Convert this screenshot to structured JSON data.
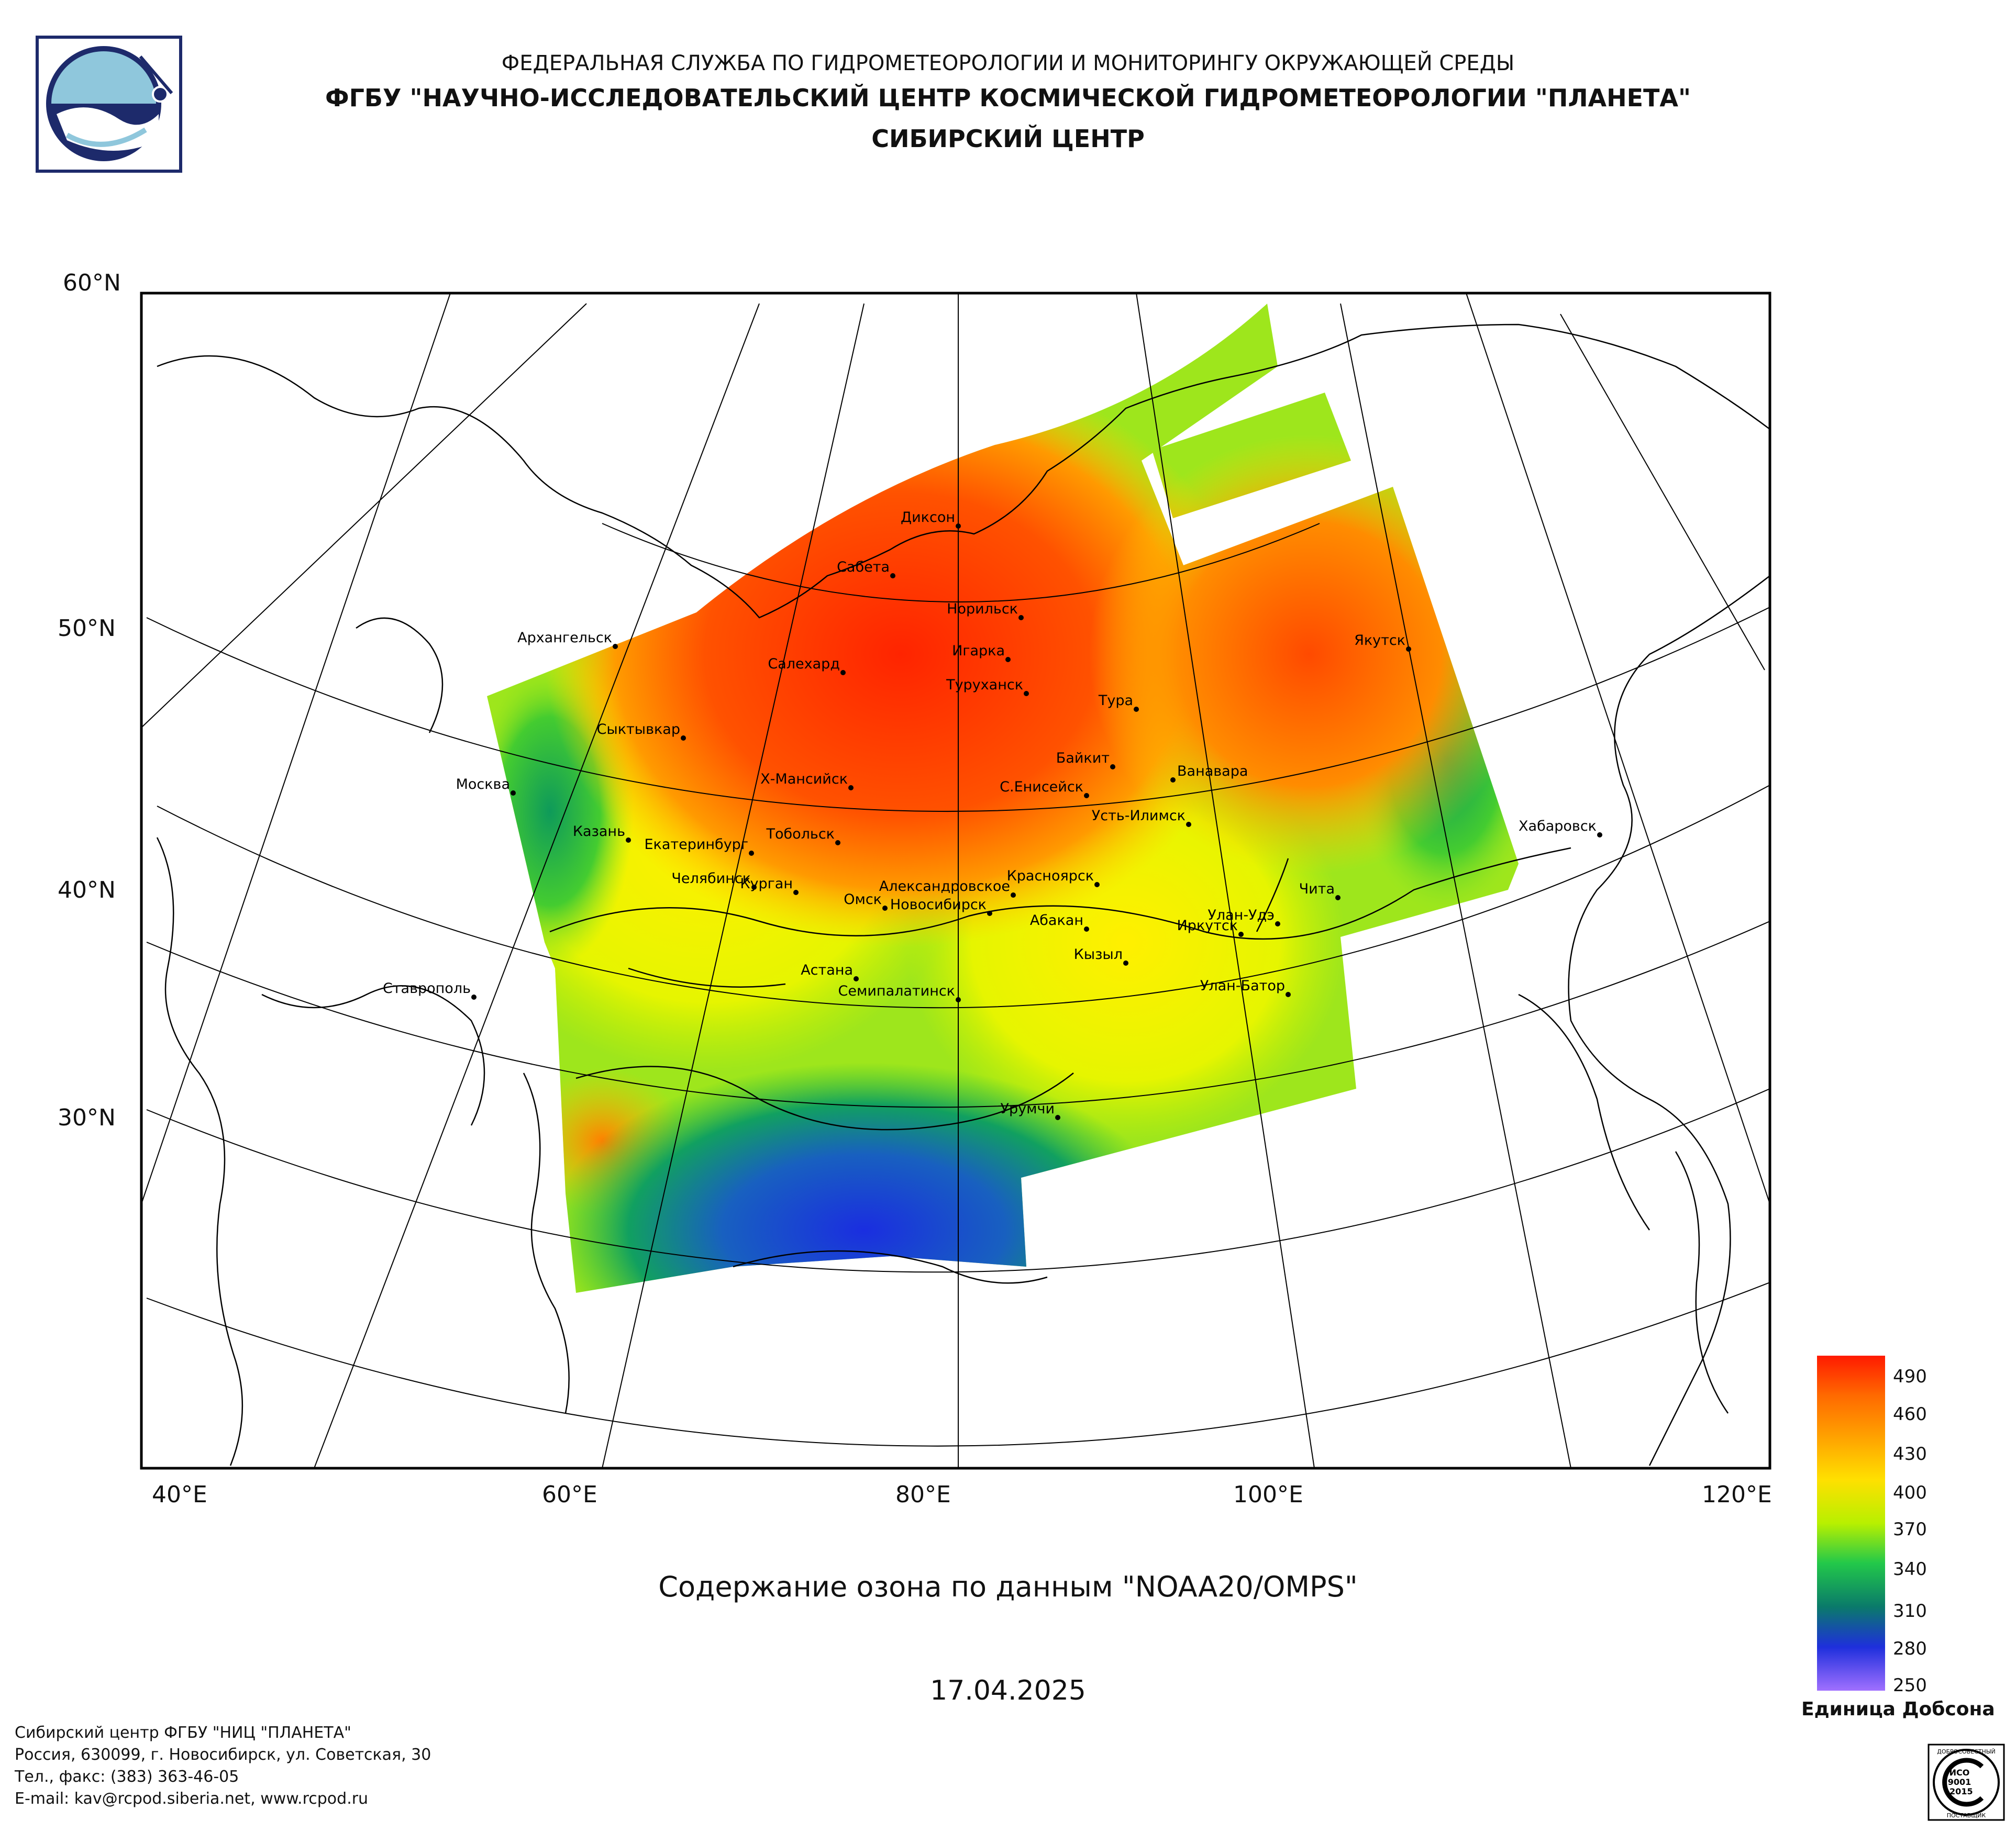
{
  "header": {
    "line1": "ФЕДЕРАЛЬНАЯ СЛУЖБА ПО ГИДРОМЕТЕОРОЛОГИИ И МОНИТОРИНГУ ОКРУЖАЮЩЕЙ СРЕДЫ",
    "line2": "ФГБУ \"НАУЧНО-ИССЛЕДОВАТЕЛЬСКИЙ ЦЕНТР КОСМИЧЕСКОЙ ГИДРОМЕТЕОРОЛОГИИ \"ПЛАНЕТА\"",
    "line3": "СИБИРСКИЙ ЦЕНТР"
  },
  "map": {
    "lat_labels": [
      "60°N",
      "50°N",
      "40°N",
      "30°N"
    ],
    "lon_labels": [
      "40°E",
      "60°E",
      "80°E",
      "100°E",
      "120°E"
    ],
    "cities": [
      {
        "name": "Диксон"
      },
      {
        "name": "Сабета"
      },
      {
        "name": "Норильск"
      },
      {
        "name": "Игарка"
      },
      {
        "name": "Салехард"
      },
      {
        "name": "Туруханск"
      },
      {
        "name": "Тура"
      },
      {
        "name": "Якутск"
      },
      {
        "name": "Архангельск"
      },
      {
        "name": "Сыктывкар"
      },
      {
        "name": "Москва"
      },
      {
        "name": "Х-Мансийск"
      },
      {
        "name": "Байкит"
      },
      {
        "name": "Ванавара"
      },
      {
        "name": "С.Енисейск"
      },
      {
        "name": "Усть-Илимск"
      },
      {
        "name": "Хабаровск"
      },
      {
        "name": "Казань"
      },
      {
        "name": "Екатеринбург"
      },
      {
        "name": "Тобольск"
      },
      {
        "name": "Челябинск"
      },
      {
        "name": "Курган"
      },
      {
        "name": "Александровское"
      },
      {
        "name": "Омск"
      },
      {
        "name": "Новосибирск"
      },
      {
        "name": "Красноярск"
      },
      {
        "name": "Абакан"
      },
      {
        "name": "Улан-Удэ"
      },
      {
        "name": "Иркутск"
      },
      {
        "name": "Чита"
      },
      {
        "name": "Кызыл"
      },
      {
        "name": "Астана"
      },
      {
        "name": "Семипалатинск"
      },
      {
        "name": "Улан-Батор"
      },
      {
        "name": "Ставрополь"
      },
      {
        "name": "Урумчи"
      }
    ]
  },
  "caption": "Содержание озона по данным \"NOAA20/OMPS\"",
  "date": "17.04.2025",
  "legend": {
    "ticks": [
      "490",
      "460",
      "430",
      "400",
      "370",
      "340",
      "310",
      "280",
      "250"
    ],
    "unit": "Единица Добсона",
    "colors": [
      "#ff1a00",
      "#ff6a00",
      "#ffa500",
      "#ffe000",
      "#b8f000",
      "#22c84a",
      "#0a7a6a",
      "#1e2fdc",
      "#a070ff"
    ]
  },
  "footer": {
    "line1": "Сибирский центр ФГБУ \"НИЦ \"ПЛАНЕТА\"",
    "line2": "Россия, 630099, г. Новосибирск, ул. Советская, 30",
    "line3": "Тел., факс: (383) 363-46-05",
    "line4": "E-mail: kav@rcpod.siberia.net, www.rcpod.ru"
  },
  "iso": {
    "top": "ДОБРОСОВЕСТНЫЙ",
    "mid1": "ИСО",
    "mid2": "9001",
    "mid3": "-2015",
    "bottom": "ПОСТАВЩИК"
  }
}
